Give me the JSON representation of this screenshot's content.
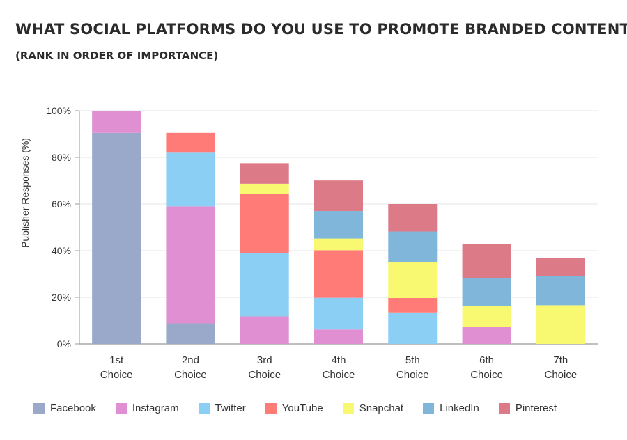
{
  "title": "WHAT SOCIAL PLATFORMS DO YOU USE TO PROMOTE BRANDED CONTENT?",
  "subtitle": "(RANK IN ORDER OF IMPORTANCE)",
  "chart_data": {
    "type": "bar",
    "stacked": true,
    "ylabel": "Publisher Responses (%)",
    "xlabel": "",
    "ylim": [
      0,
      100
    ],
    "yticks": [
      "0%",
      "20%",
      "40%",
      "60%",
      "80%",
      "100%"
    ],
    "grid": true,
    "legend_position": "bottom",
    "categories": [
      [
        "1st",
        "Choice"
      ],
      [
        "2nd",
        "Choice"
      ],
      [
        "3rd",
        "Choice"
      ],
      [
        "4th",
        "Choice"
      ],
      [
        "5th",
        "Choice"
      ],
      [
        "6th",
        "Choice"
      ],
      [
        "7th",
        "Choice"
      ]
    ],
    "series": [
      {
        "name": "Facebook",
        "color": "#9aa9c9",
        "values": [
          90.5,
          8.8,
          0,
          0,
          0,
          0,
          0
        ]
      },
      {
        "name": "Instagram",
        "color": "#e08fd3",
        "values": [
          9.5,
          50.2,
          11.8,
          6.2,
          0,
          7.4,
          0
        ]
      },
      {
        "name": "Twitter",
        "color": "#8ccff5",
        "values": [
          0,
          23.0,
          27.1,
          13.6,
          13.5,
          0,
          0
        ]
      },
      {
        "name": "YouTube",
        "color": "#ff7b78",
        "values": [
          0,
          8.5,
          25.4,
          20.4,
          6.2,
          0,
          0
        ]
      },
      {
        "name": "Snapchat",
        "color": "#f9f871",
        "values": [
          0,
          0,
          4.4,
          5.0,
          15.4,
          8.8,
          16.6
        ]
      },
      {
        "name": "LinkedIn",
        "color": "#7fb6da",
        "values": [
          0,
          0,
          0,
          11.8,
          13.1,
          12.0,
          12.6
        ]
      },
      {
        "name": "Pinterest",
        "color": "#dc7b87",
        "values": [
          0,
          0,
          8.8,
          13.1,
          11.8,
          14.5,
          7.6
        ]
      }
    ]
  }
}
